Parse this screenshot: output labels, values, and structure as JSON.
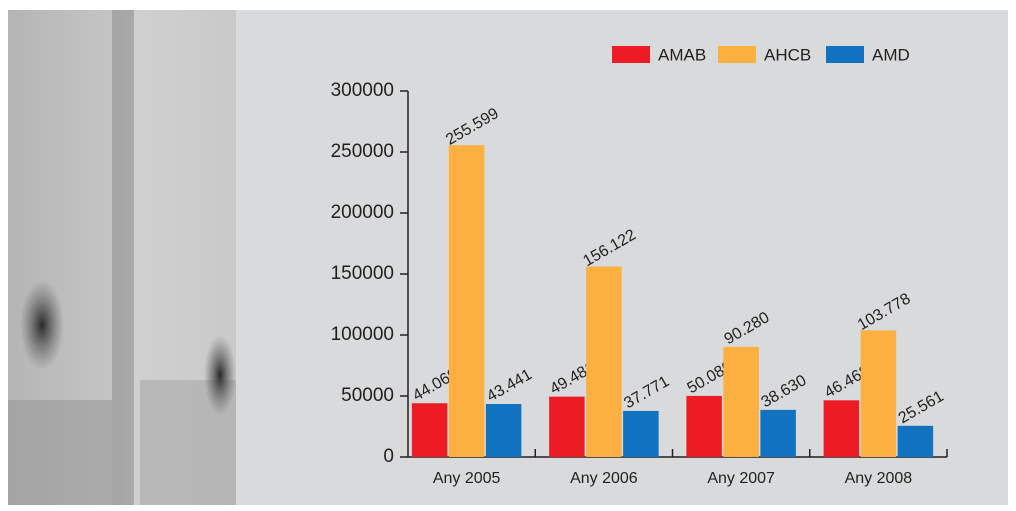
{
  "chart_data": {
    "type": "bar",
    "categories": [
      "Any 2005",
      "Any 2006",
      "Any 2007",
      "Any 2008"
    ],
    "series": [
      {
        "name": "AMAB",
        "color": "#ed1c24",
        "values": [
          44069,
          49481,
          50080,
          46468
        ],
        "value_labels": [
          "44.069",
          "49.481",
          "50.080",
          "46.468"
        ]
      },
      {
        "name": "AHCB",
        "color": "#fbb040",
        "values": [
          255599,
          156122,
          90280,
          103778
        ],
        "value_labels": [
          "255.599",
          "156.122",
          "90.280",
          "103.778"
        ]
      },
      {
        "name": "AMD",
        "color": "#1172bf",
        "values": [
          43441,
          37771,
          38630,
          25561
        ],
        "value_labels": [
          "43.441",
          "37.771",
          "38.630",
          "25.561"
        ]
      }
    ],
    "ylim": [
      0,
      300000
    ],
    "yticks": [
      0,
      50000,
      100000,
      150000,
      200000,
      250000,
      300000
    ],
    "legend": "top-right",
    "grid": false
  }
}
